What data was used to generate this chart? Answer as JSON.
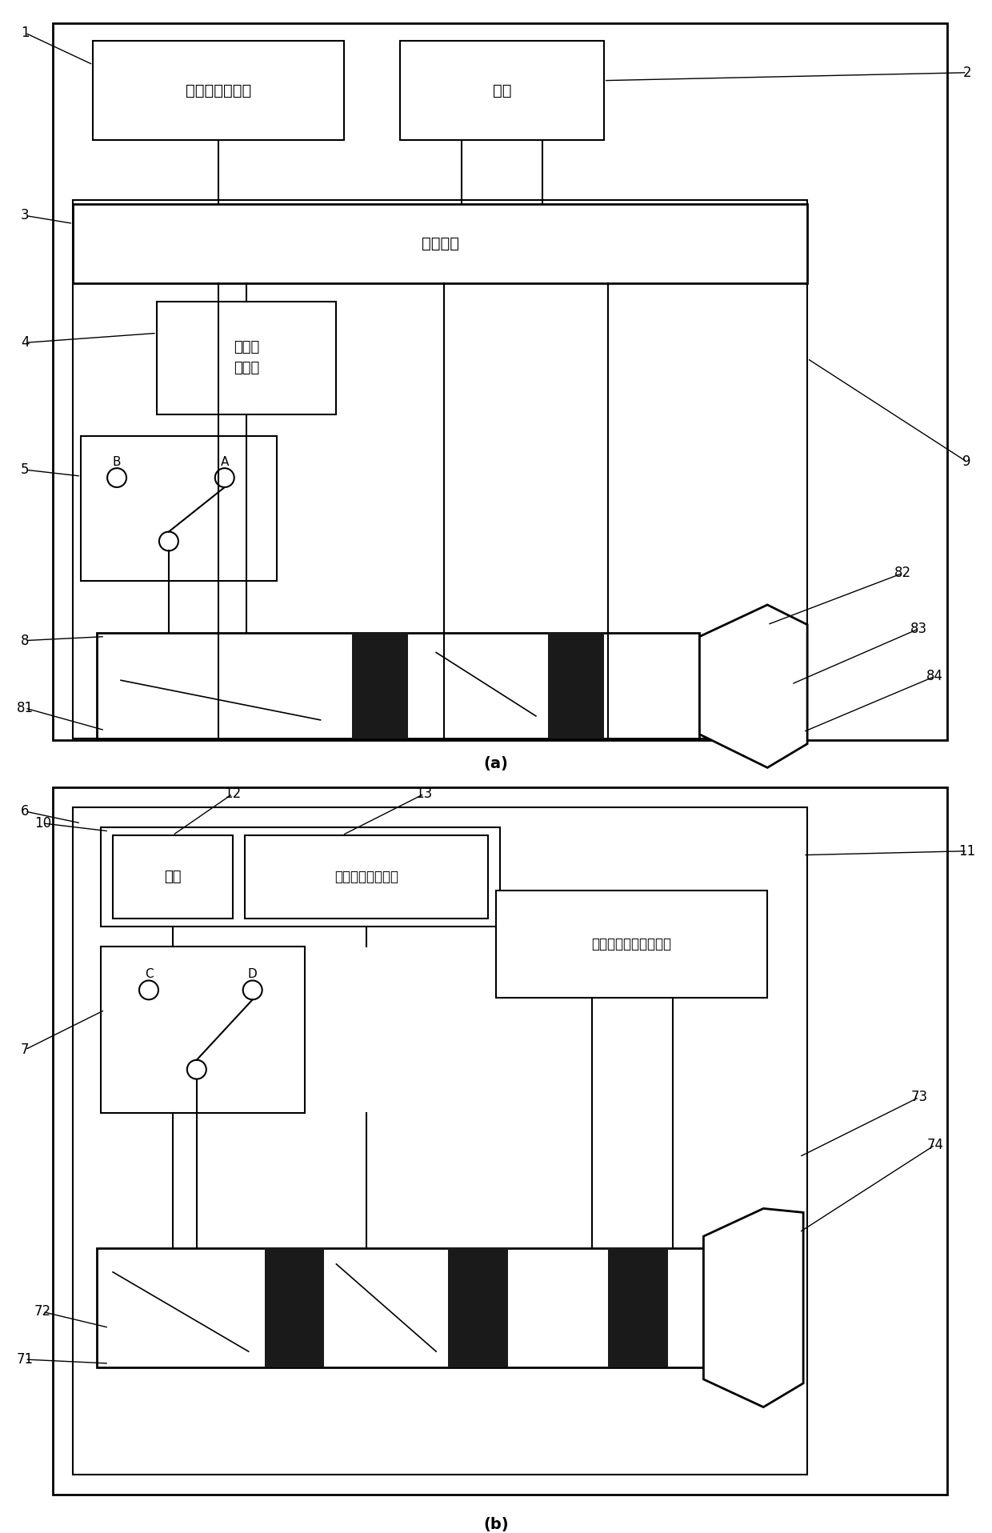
{
  "bg_color": "#ffffff",
  "panel_a": {
    "noise_receiver_label": "环境噪声接收器",
    "speaker_label": "喙叭",
    "denoise_chip_label": "降噪芯片",
    "earphone_mic_label": "耳机端\n麦克风"
  },
  "panel_b": {
    "power_label": "电源",
    "earphone_out_label": "耳机麦克输出接口",
    "device_audio_label": "设备输出音频信号模块"
  },
  "title_a": "(a)",
  "title_b": "(b)"
}
